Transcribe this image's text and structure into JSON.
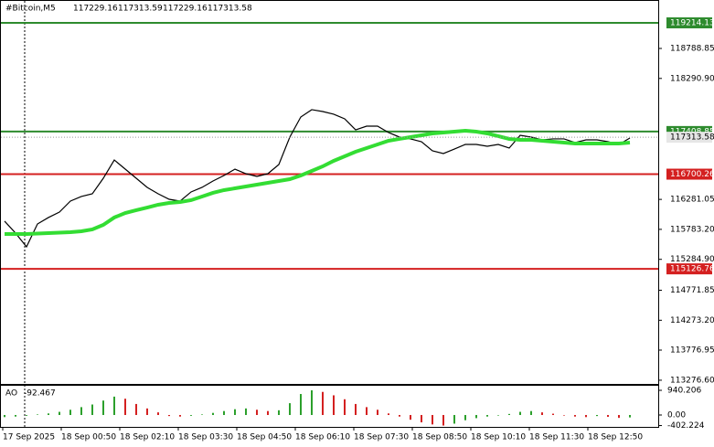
{
  "chart_data": [
    {
      "type": "line",
      "symbol": "#Bitcoin,M5",
      "ohlc": [
        117229.16,
        117313.59,
        117229.16,
        117313.58
      ],
      "ylim": [
        113215,
        119594
      ],
      "yticks": [
        118788.85,
        {
          "value": 118290.9,
          "label": "118290.90"
        },
        116281.05,
        {
          "value": 115783.2,
          "label": "115783.20"
        },
        {
          "value": 115284.9,
          "label": "115284.90"
        },
        114771.85,
        {
          "value": 114273.2,
          "label": "114273.20"
        },
        113776.95,
        {
          "value": 113276.6,
          "label": "113276.60"
        }
      ],
      "x_labels": [
        "17 Sep 2025",
        "18 Sep 00:50",
        "18 Sep 02:10",
        "18 Sep 03:30",
        "18 Sep 04:50",
        "18 Sep 06:10",
        "18 Sep 07:30",
        "18 Sep 08:50",
        "18 Sep 10:10",
        "18 Sep 11:30",
        "18 Sep 12:50"
      ],
      "levels": [
        {
          "value": 119214.13,
          "color": "#2e8b2e"
        },
        {
          "value": 117408.85,
          "color": "#2e8b2e"
        },
        {
          "value": 116700.26,
          "color": "#d42020"
        },
        {
          "value": 115126.76,
          "color": "#d42020"
        }
      ],
      "current_price": 117313.58,
      "series": [
        {
          "color": "#000000",
          "width": 1.2,
          "values": [
            115919,
            115721,
            115493,
            115873,
            115980,
            116070,
            116253,
            116329,
            116374,
            116632,
            116936,
            116784,
            116632,
            116481,
            116374,
            116283,
            116253,
            116405,
            116481,
            116587,
            116678,
            116784,
            116708,
            116663,
            116708,
            116860,
            117316,
            117650,
            117772,
            117741,
            117696,
            117620,
            117437,
            117498,
            117498,
            117392,
            117316,
            117286,
            117240,
            117088,
            117043,
            117118,
            117194,
            117194,
            117164,
            117194,
            117134,
            117346,
            117316,
            117270,
            117286,
            117286,
            117225,
            117270,
            117270,
            117240,
            117194,
            117300
          ]
        },
        {
          "color": "#33dd33",
          "width": 4,
          "values": [
            115706,
            115706,
            115706,
            115714,
            115721,
            115729,
            115737,
            115752,
            115782,
            115858,
            115980,
            116055,
            116101,
            116146,
            116192,
            116222,
            116238,
            116268,
            116329,
            116390,
            116435,
            116465,
            116496,
            116526,
            116556,
            116587,
            116617,
            116678,
            116754,
            116830,
            116921,
            116997,
            117073,
            117134,
            117194,
            117255,
            117286,
            117316,
            117346,
            117377,
            117392,
            117407,
            117422,
            117407,
            117377,
            117331,
            117286,
            117270,
            117270,
            117255,
            117240,
            117225,
            117210,
            117210,
            117210,
            117210,
            117210,
            117225
          ]
        }
      ]
    },
    {
      "type": "histogram_ao",
      "name": "AO",
      "up_color": "#2ca02c",
      "down_color": "#d42020",
      "ylim": [
        -453,
        1149
      ],
      "yticks": [
        940.206,
        {
          "value": 0,
          "label": "0.00"
        },
        -402.224
      ],
      "values": [
        -80,
        -60,
        -30,
        20,
        60,
        120,
        200,
        300,
        400,
        550,
        700,
        620,
        420,
        250,
        100,
        -40,
        -60,
        -30,
        20,
        80,
        150,
        220,
        250,
        200,
        150,
        180,
        450,
        800,
        940.206,
        880,
        750,
        600,
        420,
        300,
        200,
        60,
        -60,
        -180,
        -280,
        -360,
        -402.224,
        -330,
        -200,
        -120,
        -60,
        -20,
        40,
        120,
        150,
        100,
        50,
        -20,
        -60,
        -80,
        -40,
        -70,
        -110,
        -92.467
      ]
    }
  ]
}
